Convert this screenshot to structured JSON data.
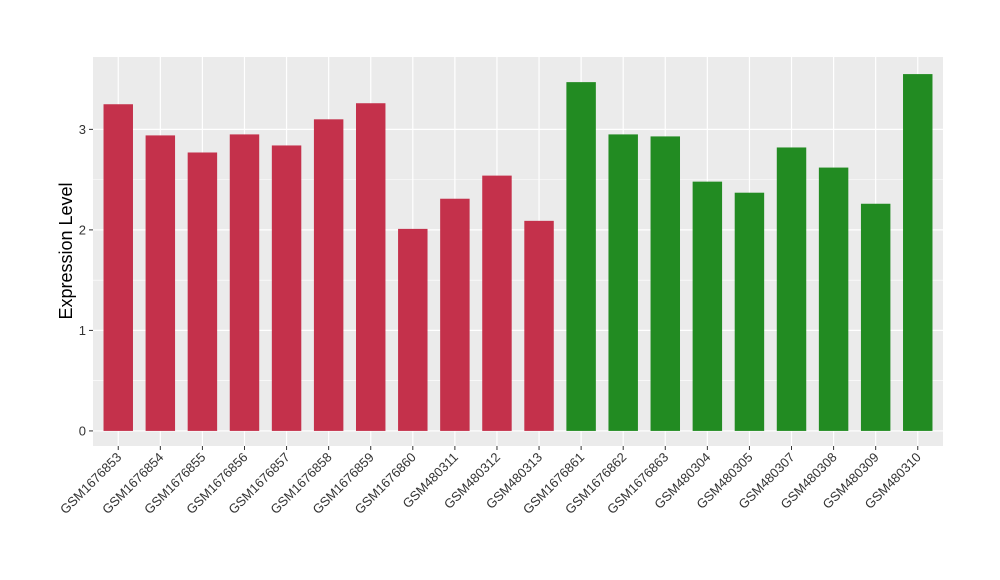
{
  "chart_data": {
    "type": "bar",
    "title": "",
    "xlabel": "",
    "ylabel": "Expression Level",
    "ylim": [
      -0.15,
      3.72
    ],
    "yticks": [
      0,
      1,
      2,
      3
    ],
    "grid": true,
    "categories": [
      "GSM1676853",
      "GSM1676854",
      "GSM1676855",
      "GSM1676856",
      "GSM1676857",
      "GSM1676858",
      "GSM1676859",
      "GSM1676860",
      "GSM480311",
      "GSM480312",
      "GSM480313",
      "GSM1676861",
      "GSM1676862",
      "GSM1676863",
      "GSM480304",
      "GSM480305",
      "GSM480307",
      "GSM480308",
      "GSM480309",
      "GSM480310"
    ],
    "values": [
      3.25,
      2.94,
      2.77,
      2.95,
      2.84,
      3.1,
      3.26,
      2.01,
      2.31,
      2.54,
      2.09,
      3.47,
      2.95,
      2.93,
      2.48,
      2.37,
      2.82,
      2.62,
      2.26,
      3.55
    ],
    "groups": [
      "red",
      "red",
      "red",
      "red",
      "red",
      "red",
      "red",
      "red",
      "red",
      "red",
      "red",
      "green",
      "green",
      "green",
      "green",
      "green",
      "green",
      "green",
      "green",
      "green"
    ],
    "colors": {
      "red": "#C4314B",
      "green": "#228B22",
      "panel": "#EBEBEB",
      "grid": "#FFFFFF"
    }
  }
}
